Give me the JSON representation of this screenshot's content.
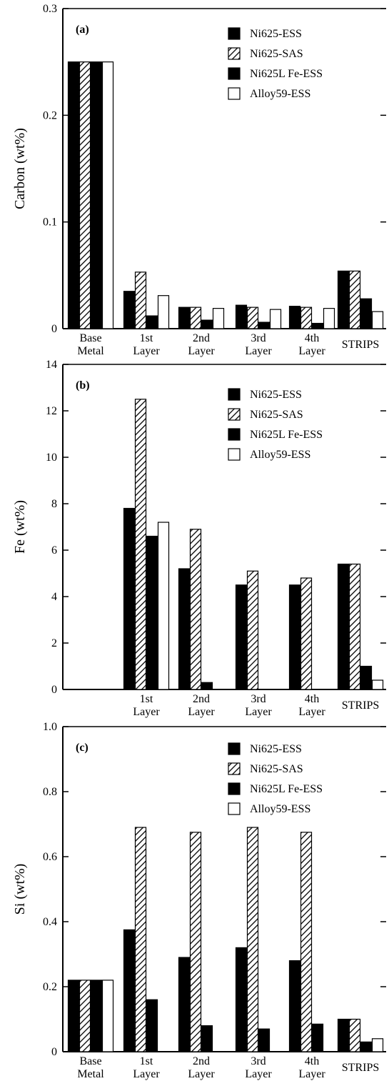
{
  "chart_data": [
    {
      "type": "bar",
      "panel_label": "(a)",
      "ylabel": "Carbon (wt%)",
      "ylim": [
        0,
        0.3
      ],
      "yticks": [
        {
          "value": 0,
          "label": "0"
        },
        {
          "value": 0.1,
          "label": "0.1"
        },
        {
          "value": 0.2,
          "label": "0.2"
        },
        {
          "value": 0.3,
          "label": "0.3"
        }
      ],
      "categories": [
        [
          "Base",
          "Metal"
        ],
        [
          "1st",
          "Layer"
        ],
        [
          "2nd",
          "Layer"
        ],
        [
          "3rd",
          "Layer"
        ],
        [
          "4th",
          "Layer"
        ],
        [
          "STRIPS"
        ]
      ],
      "legend_position": "top-right",
      "series": [
        {
          "name": "Ni625-ESS",
          "style": "solid",
          "values": [
            0.25,
            0.035,
            0.02,
            0.022,
            0.021,
            0.054
          ]
        },
        {
          "name": "Ni625-SAS",
          "style": "hatch",
          "values": [
            0.25,
            0.053,
            0.02,
            0.02,
            0.02,
            0.054
          ]
        },
        {
          "name": "Ni625L Fe-ESS",
          "style": "solid",
          "values": [
            0.25,
            0.012,
            0.008,
            0.006,
            0.005,
            0.028
          ]
        },
        {
          "name": "Alloy59-ESS",
          "style": "open",
          "values": [
            0.25,
            0.031,
            0.019,
            0.018,
            0.019,
            0.016
          ]
        }
      ]
    },
    {
      "type": "bar",
      "panel_label": "(b)",
      "ylabel": "Fe (wt%)",
      "ylim": [
        0,
        14
      ],
      "yticks": [
        {
          "value": 0,
          "label": "0"
        },
        {
          "value": 2,
          "label": "2"
        },
        {
          "value": 4,
          "label": "4"
        },
        {
          "value": 6,
          "label": "6"
        },
        {
          "value": 8,
          "label": "8"
        },
        {
          "value": 10,
          "label": "10"
        },
        {
          "value": 12,
          "label": "12"
        },
        {
          "value": 14,
          "label": "14"
        }
      ],
      "categories": [
        [
          "",
          ""
        ],
        [
          "1st",
          "Layer"
        ],
        [
          "2nd",
          "Layer"
        ],
        [
          "3rd",
          "Layer"
        ],
        [
          "4th",
          "Layer"
        ],
        [
          "STRIPS"
        ]
      ],
      "legend_position": "top-right",
      "series": [
        {
          "name": "Ni625-ESS",
          "style": "solid",
          "values": [
            0,
            7.8,
            5.2,
            4.5,
            4.5,
            5.4
          ]
        },
        {
          "name": "Ni625-SAS",
          "style": "hatch",
          "values": [
            0,
            12.5,
            6.9,
            5.1,
            4.8,
            5.4
          ]
        },
        {
          "name": "Ni625L Fe-ESS",
          "style": "solid",
          "values": [
            0,
            6.6,
            0.3,
            0,
            0,
            1.0
          ]
        },
        {
          "name": "Alloy59-ESS",
          "style": "open",
          "values": [
            0,
            7.2,
            0,
            0,
            0,
            0.4
          ]
        }
      ]
    },
    {
      "type": "bar",
      "panel_label": "(c)",
      "ylabel": "Si (wt%)",
      "ylim": [
        0,
        1.0
      ],
      "yticks": [
        {
          "value": 0,
          "label": "0"
        },
        {
          "value": 0.2,
          "label": "0.2"
        },
        {
          "value": 0.4,
          "label": "0.4"
        },
        {
          "value": 0.6,
          "label": "0.6"
        },
        {
          "value": 0.8,
          "label": "0.8"
        },
        {
          "value": 1.0,
          "label": "1.0"
        }
      ],
      "categories": [
        [
          "Base",
          "Metal"
        ],
        [
          "1st",
          "Layer"
        ],
        [
          "2nd",
          "Layer"
        ],
        [
          "3rd",
          "Layer"
        ],
        [
          "4th",
          "Layer"
        ],
        [
          "STRIPS"
        ]
      ],
      "legend_position": "top-right",
      "series": [
        {
          "name": "Ni625-ESS",
          "style": "solid",
          "values": [
            0.22,
            0.375,
            0.29,
            0.32,
            0.28,
            0.1
          ]
        },
        {
          "name": "Ni625-SAS",
          "style": "hatch",
          "values": [
            0.22,
            0.69,
            0.675,
            0.69,
            0.675,
            0.1
          ]
        },
        {
          "name": "Ni625L Fe-ESS",
          "style": "solid",
          "values": [
            0.22,
            0.16,
            0.08,
            0.07,
            0.085,
            0.03
          ]
        },
        {
          "name": "Alloy59-ESS",
          "style": "open",
          "values": [
            0.22,
            0,
            0,
            0,
            0,
            0.04
          ]
        }
      ]
    }
  ]
}
